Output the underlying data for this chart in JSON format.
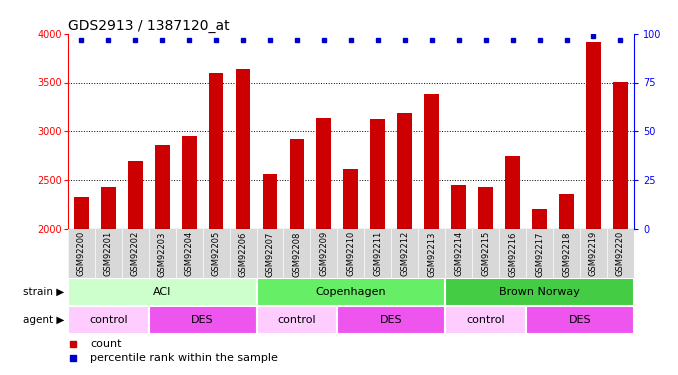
{
  "title": "GDS2913 / 1387120_at",
  "samples": [
    "GSM92200",
    "GSM92201",
    "GSM92202",
    "GSM92203",
    "GSM92204",
    "GSM92205",
    "GSM92206",
    "GSM92207",
    "GSM92208",
    "GSM92209",
    "GSM92210",
    "GSM92211",
    "GSM92212",
    "GSM92213",
    "GSM92214",
    "GSM92215",
    "GSM92216",
    "GSM92217",
    "GSM92218",
    "GSM92219",
    "GSM92220"
  ],
  "counts": [
    2330,
    2430,
    2700,
    2860,
    2950,
    3600,
    3640,
    2560,
    2920,
    3140,
    2610,
    3130,
    3190,
    3380,
    2450,
    2430,
    2750,
    2200,
    2360,
    3920,
    3510
  ],
  "percentiles": [
    97,
    97,
    97,
    97,
    97,
    97,
    97,
    97,
    97,
    97,
    97,
    97,
    97,
    97,
    97,
    97,
    97,
    97,
    97,
    99,
    97
  ],
  "ylim_left": [
    2000,
    4000
  ],
  "ylim_right": [
    0,
    100
  ],
  "yticks_left": [
    2000,
    2500,
    3000,
    3500,
    4000
  ],
  "yticks_right": [
    0,
    25,
    50,
    75,
    100
  ],
  "bar_color": "#cc0000",
  "dot_color": "#0000cc",
  "strain_groups": [
    {
      "label": "ACI",
      "start": 0,
      "end": 6,
      "color": "#ccffcc"
    },
    {
      "label": "Copenhagen",
      "start": 7,
      "end": 13,
      "color": "#66ee66"
    },
    {
      "label": "Brown Norway",
      "start": 14,
      "end": 20,
      "color": "#44cc44"
    }
  ],
  "agent_groups": [
    {
      "label": "control",
      "start": 0,
      "end": 2,
      "color": "#ffccff"
    },
    {
      "label": "DES",
      "start": 3,
      "end": 6,
      "color": "#ee55ee"
    },
    {
      "label": "control",
      "start": 7,
      "end": 9,
      "color": "#ffccff"
    },
    {
      "label": "DES",
      "start": 10,
      "end": 13,
      "color": "#ee55ee"
    },
    {
      "label": "control",
      "start": 14,
      "end": 16,
      "color": "#ffccff"
    },
    {
      "label": "DES",
      "start": 17,
      "end": 20,
      "color": "#ee55ee"
    }
  ],
  "strain_label": "strain",
  "agent_label": "agent",
  "legend_count_label": "count",
  "legend_pct_label": "percentile rank within the sample",
  "background_color": "#ffffff",
  "xticklabel_bg": "#d8d8d8",
  "title_fontsize": 10,
  "tick_fontsize": 7,
  "bar_width": 0.55
}
